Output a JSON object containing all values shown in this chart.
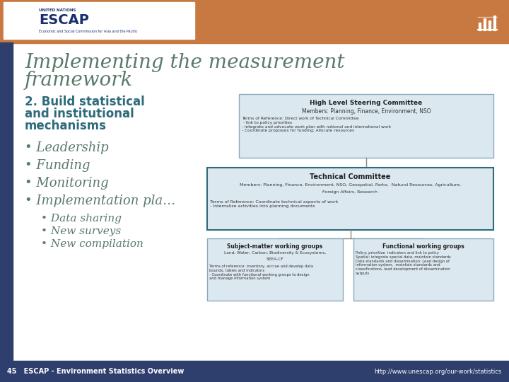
{
  "title_line1": "Implementing the measurement",
  "title_line2": "framework",
  "subtitle_line1": "2. Build statistical",
  "subtitle_line2": "and institutional",
  "subtitle_line3": "mechanisms",
  "bullets": [
    "Leadership",
    "Funding",
    "Monitoring",
    "Implementation pla…"
  ],
  "sub_bullets": [
    "Data sharing",
    "New surveys",
    "New compilation"
  ],
  "footer_left": "45   ESCAP - Environment Statistics Overview",
  "footer_right": "http://www.unescap.org/our-work/statistics",
  "slide_bg": "#ffffff",
  "title_color": "#5a7a6a",
  "subtitle_color": "#2e6b7a",
  "bullet_color": "#5a7a6a",
  "footer_bg": "#2e3f6e",
  "footer_text_color": "#ffffff",
  "orange_color": "#c87941",
  "left_bar_color": "#2e3f6e",
  "box_fill": "#dce8f0",
  "box_border": "#8aaabb",
  "box_dark_border": "#2e6b7a",
  "hl_steering": "High Level Steering Committee",
  "hl_members": "Members: Planning, Finance, Environment, NSO",
  "hl_tor": "Terms of Reference: Direct work of Technical Committee\n - link to policy priorities\n- integrate and advocate work plan with national and international work\n- Coordinate proposals for funding; Allocate resources",
  "tc_title": "Technical Committee",
  "tc_members1": "Members: Planning, Finance, Environment, NSO, Geospatial, Parks,  Natural Resources, Agriculture,",
  "tc_members2": "Foreign Affairs, Research",
  "tc_tor": "Terms of Reference: Coordinate technical aspects of work\n- Internalize activities into planning documents",
  "smwg_title": "Subject-matter working groups",
  "smwg_line1": "Land, Water, Carbon, Biodiversity & Ecosystems,",
  "smwg_line2": "SEEA-CF",
  "smwg_tor": "Terms of reference: inventory, accrue and develop data\nbounds, tables and indicators\n- Coordinate with functional working groups to design\nand manage information system",
  "fwg_title": "Functional working groups",
  "fwg_body": "Policy: prioritize  indicators and link to policy\nSpatial: integrate special data, maintain standards\nData standards and dissemination: Lead design of\ninformation system,  maintain standards and\nclassifications, lead development of dissemination\noutputs"
}
